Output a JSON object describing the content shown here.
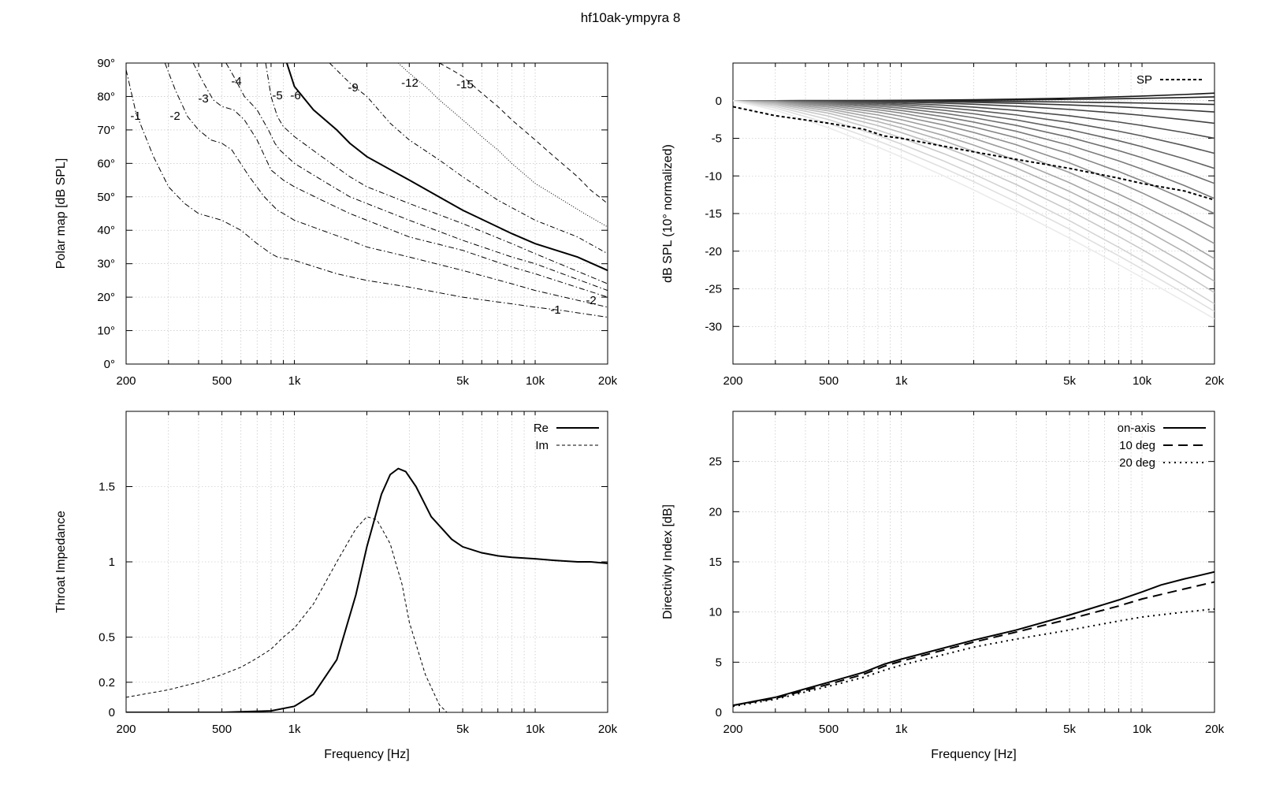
{
  "title": "hf10ak-ympyra 8",
  "chart_data": [
    {
      "id": "polar",
      "type": "line",
      "xscale": "log",
      "xlim": [
        200,
        20000
      ],
      "ylim": [
        0,
        90
      ],
      "xticks": [
        200,
        500,
        1000,
        5000,
        10000,
        20000
      ],
      "xtick_labels": [
        "200",
        "500",
        "1k",
        "5k",
        "10k",
        "20k"
      ],
      "yticks": [
        0,
        10,
        20,
        30,
        40,
        50,
        60,
        70,
        80,
        90
      ],
      "ytick_labels": [
        "0°",
        "10°",
        "20°",
        "30°",
        "40°",
        "50°",
        "60°",
        "70°",
        "80°",
        "90°"
      ],
      "xlabel": "",
      "ylabel": "Polar map [dB SPL]",
      "grid": true,
      "series": [
        {
          "level": -1,
          "label": "-1",
          "x": [
            200,
            220,
            260,
            300,
            350,
            400,
            500,
            600,
            700,
            800,
            850,
            1000,
            1500,
            2000,
            3000,
            5000,
            8000,
            10000,
            13000,
            20000
          ],
          "y": [
            88,
            75,
            62,
            53,
            48,
            45,
            43,
            40,
            36,
            33,
            32,
            31,
            27,
            25,
            23,
            20,
            18,
            17,
            16,
            14
          ]
        },
        {
          "level": -2,
          "label": "-2",
          "x": [
            290,
            320,
            360,
            400,
            450,
            500,
            550,
            650,
            750,
            850,
            900,
            1000,
            1300,
            1700,
            2000,
            3000,
            5000,
            8000,
            10000,
            20000
          ],
          "y": [
            90,
            82,
            74,
            70,
            67,
            66,
            64,
            56,
            50,
            46,
            45,
            43,
            40,
            37,
            35,
            32,
            28,
            24,
            22,
            17
          ]
        },
        {
          "level": -3,
          "label": "-3",
          "x": [
            380,
            420,
            460,
            500,
            560,
            620,
            700,
            800,
            900,
            1000,
            1300,
            1700,
            2000,
            3000,
            5000,
            8000,
            10000,
            20000
          ],
          "y": [
            90,
            84,
            79,
            77,
            76,
            73,
            67,
            58,
            55,
            53,
            49,
            45,
            43,
            38,
            34,
            29,
            27,
            20
          ]
        },
        {
          "level": -4,
          "label": "-4",
          "x": [
            520,
            560,
            620,
            700,
            780,
            830,
            870,
            1000,
            1300,
            1700,
            2000,
            3000,
            5000,
            8000,
            10000,
            20000
          ],
          "y": [
            90,
            86,
            80,
            76,
            70,
            66,
            64,
            60,
            55,
            50,
            48,
            43,
            37,
            32,
            30,
            22
          ]
        },
        {
          "level": -5,
          "label": "-5",
          "x": [
            760,
            800,
            850,
            900,
            1000,
            1300,
            1700,
            2000,
            3000,
            5000,
            8000,
            10000,
            20000
          ],
          "y": [
            90,
            80,
            74,
            71,
            68,
            62,
            56,
            53,
            48,
            42,
            36,
            33,
            24
          ]
        },
        {
          "level": -6,
          "label": "-6",
          "x": [
            930,
            1000,
            1200,
            1500,
            1700,
            2000,
            3000,
            5000,
            8000,
            10000,
            15000,
            20000
          ],
          "y": [
            90,
            83,
            76,
            70,
            66,
            62,
            55,
            46,
            39,
            36,
            32,
            28
          ]
        },
        {
          "level": -9,
          "label": "-9",
          "x": [
            1400,
            1700,
            2000,
            2500,
            3000,
            4000,
            5000,
            7000,
            10000,
            15000,
            20000
          ],
          "y": [
            90,
            84,
            80,
            72,
            67,
            61,
            56,
            49,
            43,
            38,
            33
          ]
        },
        {
          "level": -12,
          "label": "-12",
          "x": [
            2700,
            3000,
            3500,
            4000,
            5000,
            6000,
            7000,
            8000,
            10000,
            13000,
            16000,
            20000
          ],
          "y": [
            90,
            87,
            83,
            79,
            73,
            68,
            64,
            60,
            54,
            49,
            45,
            41
          ]
        },
        {
          "level": -15,
          "label": "-15",
          "x": [
            4000,
            4500,
            5000,
            6000,
            7000,
            8000,
            10000,
            12000,
            15000,
            17000,
            20000
          ],
          "y": [
            90,
            88,
            86,
            81,
            77,
            73,
            67,
            62,
            56,
            52,
            48
          ]
        }
      ]
    },
    {
      "id": "spl",
      "type": "line",
      "xscale": "log",
      "xlim": [
        200,
        20000
      ],
      "ylim": [
        -35,
        5
      ],
      "xticks": [
        200,
        500,
        1000,
        5000,
        10000,
        20000
      ],
      "xtick_labels": [
        "200",
        "500",
        "1k",
        "5k",
        "10k",
        "20k"
      ],
      "yticks": [
        0,
        -5,
        -10,
        -15,
        -20,
        -25,
        -30
      ],
      "ytick_labels": [
        "0",
        "-5",
        "-10",
        "-15",
        "-20",
        "-25",
        "-30"
      ],
      "xlabel": "",
      "ylabel": "dB SPL (10° normalized)",
      "grid": true,
      "legend": "top-right",
      "fan_end_values": [
        1,
        0.5,
        -0.5,
        -1.5,
        -3,
        -5,
        -7,
        -9,
        -11,
        -13,
        -15,
        -17,
        -19,
        -21,
        -22.5,
        -24,
        -25.5,
        -27,
        -28,
        -29
      ],
      "sp": {
        "name": "SP",
        "x": [
          200,
          300,
          500,
          700,
          850,
          1000,
          2000,
          3000,
          5000,
          8000,
          10000,
          15000,
          20000
        ],
        "y": [
          -0.8,
          -2,
          -3,
          -3.8,
          -4.7,
          -5,
          -6.8,
          -7.8,
          -9,
          -10.3,
          -11,
          -12,
          -13.2
        ]
      }
    },
    {
      "id": "impedance",
      "type": "line",
      "xscale": "log",
      "xlim": [
        200,
        20000
      ],
      "ylim": [
        0,
        2
      ],
      "xticks": [
        200,
        500,
        1000,
        5000,
        10000,
        20000
      ],
      "xtick_labels": [
        "200",
        "500",
        "1k",
        "5k",
        "10k",
        "20k"
      ],
      "yticks": [
        0,
        0.2,
        0.5,
        1,
        1.5
      ],
      "ytick_labels": [
        "0",
        "0.2",
        "0.5",
        "1",
        "1.5"
      ],
      "xlabel": "Frequency [Hz]",
      "ylabel": "Throat Impedance",
      "grid": true,
      "legend": "top-right",
      "series": [
        {
          "name": "Re",
          "x": [
            200,
            500,
            800,
            1000,
            1200,
            1500,
            1800,
            2000,
            2300,
            2500,
            2700,
            2900,
            3200,
            3700,
            4500,
            5000,
            6000,
            7000,
            8000,
            10000,
            12000,
            15000,
            17000,
            20000
          ],
          "y": [
            0,
            0,
            0.01,
            0.04,
            0.12,
            0.35,
            0.78,
            1.1,
            1.45,
            1.58,
            1.62,
            1.6,
            1.5,
            1.3,
            1.15,
            1.1,
            1.06,
            1.04,
            1.03,
            1.02,
            1.01,
            1.0,
            1.0,
            0.99
          ]
        },
        {
          "name": "Im",
          "x": [
            200,
            300,
            400,
            500,
            600,
            700,
            800,
            900,
            1000,
            1200,
            1500,
            1800,
            2000,
            2200,
            2500,
            2800,
            3000,
            3500,
            4000,
            4300
          ],
          "y": [
            0.1,
            0.15,
            0.2,
            0.25,
            0.3,
            0.36,
            0.42,
            0.5,
            0.56,
            0.72,
            1.0,
            1.22,
            1.3,
            1.28,
            1.12,
            0.85,
            0.6,
            0.25,
            0.05,
            0
          ]
        }
      ]
    },
    {
      "id": "di",
      "type": "line",
      "xscale": "log",
      "xlim": [
        200,
        20000
      ],
      "ylim": [
        0,
        30
      ],
      "xticks": [
        200,
        500,
        1000,
        5000,
        10000,
        20000
      ],
      "xtick_labels": [
        "200",
        "500",
        "1k",
        "5k",
        "10k",
        "20k"
      ],
      "yticks": [
        0,
        5,
        10,
        15,
        20,
        25
      ],
      "ytick_labels": [
        "0",
        "5",
        "10",
        "15",
        "20",
        "25"
      ],
      "xlabel": "Frequency [Hz]",
      "ylabel": "Directivity Index [dB]",
      "grid": true,
      "legend": "top-right",
      "series": [
        {
          "name": "on-axis",
          "x": [
            200,
            300,
            500,
            700,
            850,
            1000,
            2000,
            3000,
            5000,
            8000,
            10000,
            12000,
            15000,
            17000,
            20000
          ],
          "y": [
            0.7,
            1.5,
            3,
            4,
            4.8,
            5.3,
            7.2,
            8.2,
            9.7,
            11.2,
            12,
            12.7,
            13.3,
            13.6,
            14
          ]
        },
        {
          "name": "10 deg",
          "x": [
            200,
            300,
            500,
            700,
            850,
            1000,
            2000,
            3000,
            5000,
            8000,
            10000,
            15000,
            20000
          ],
          "y": [
            0.7,
            1.4,
            2.8,
            3.8,
            4.6,
            5.1,
            7,
            8,
            9.3,
            10.6,
            11.3,
            12.3,
            13
          ]
        },
        {
          "name": "20 deg",
          "x": [
            200,
            300,
            500,
            700,
            850,
            1000,
            2000,
            3000,
            5000,
            8000,
            10000,
            15000,
            20000
          ],
          "y": [
            0.6,
            1.3,
            2.6,
            3.5,
            4.2,
            4.7,
            6.5,
            7.3,
            8.2,
            9.1,
            9.5,
            10,
            10.3
          ]
        }
      ]
    }
  ]
}
